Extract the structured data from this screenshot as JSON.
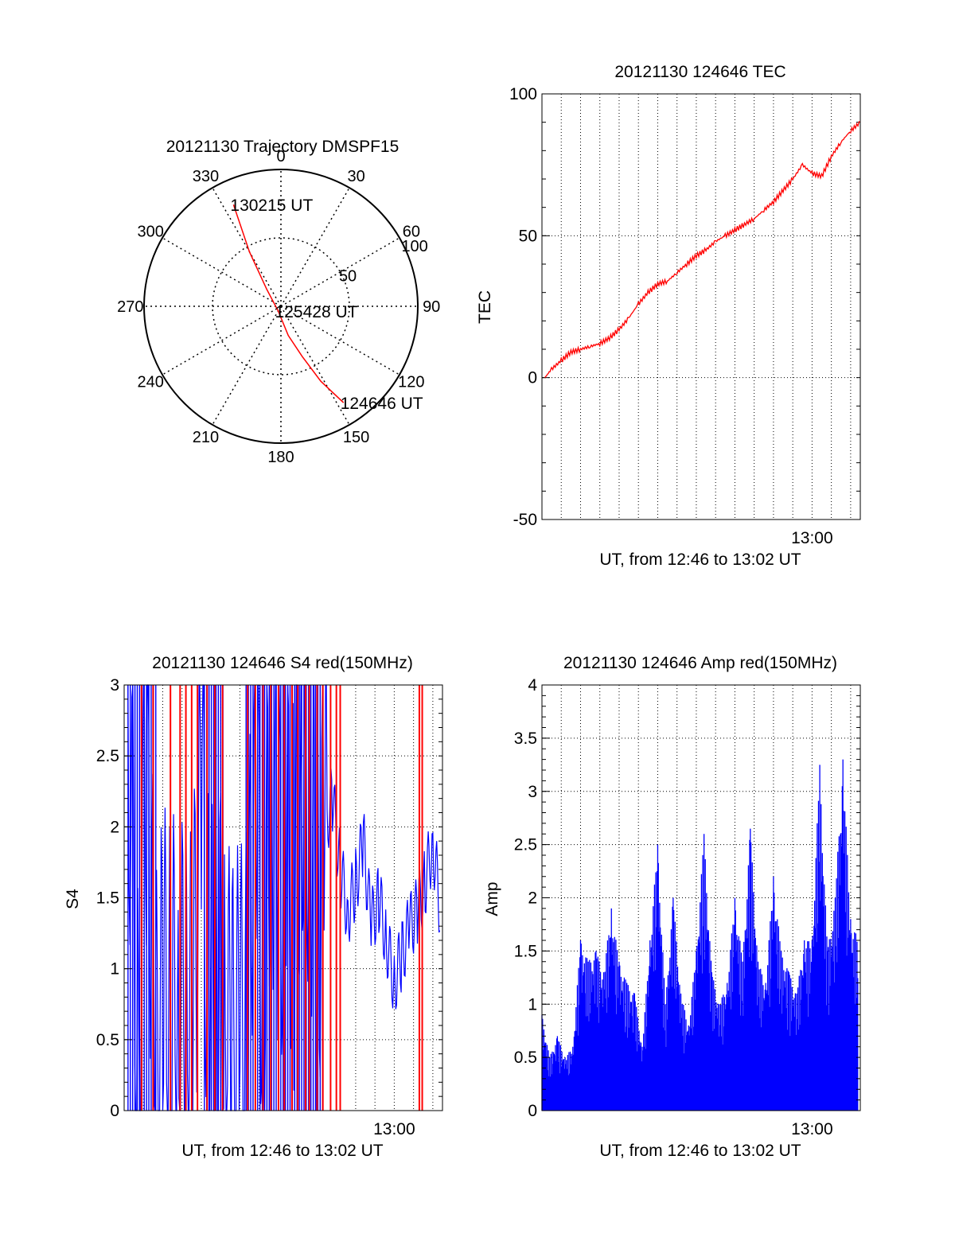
{
  "colors": {
    "red": "#ff0000",
    "blue": "#0000ff",
    "axis": "#000000",
    "background": "#ffffff"
  },
  "chart_data": [
    {
      "id": "trajectory",
      "type": "polar",
      "title": "20121130 Trajectory DMSPF15",
      "angle_labels": [
        "0",
        "30",
        "60",
        "90",
        "120",
        "150",
        "180",
        "210",
        "240",
        "270",
        "300",
        "330"
      ],
      "angles_deg": [
        0,
        30,
        60,
        90,
        120,
        150,
        180,
        210,
        240,
        270,
        300,
        330
      ],
      "radial_labels": [
        "50",
        "100"
      ],
      "radial_values": [
        50,
        100
      ],
      "rlim": [
        0,
        100
      ],
      "grid": true,
      "series": [
        {
          "color": "#ff0000",
          "points": [
            {
              "az": 147,
              "r": 84
            },
            {
              "az": 152,
              "r": 62
            },
            {
              "az": 157,
              "r": 40
            },
            {
              "az": 166,
              "r": 22
            },
            {
              "az": 210,
              "r": 4
            },
            {
              "az": 320,
              "r": 16
            },
            {
              "az": 330,
              "r": 46
            },
            {
              "az": 335,
              "r": 82
            }
          ]
        }
      ],
      "annotations": [
        {
          "text": "130215 UT",
          "az": 335,
          "r": 82
        },
        {
          "text": "125428 UT",
          "az": 210,
          "r": 4
        },
        {
          "text": "124646 UT",
          "az": 147,
          "r": 84
        }
      ]
    },
    {
      "id": "tec",
      "type": "line",
      "title": "20121130 124646 TEC",
      "xlabel": "UT, from 12:46 to 13:02 UT",
      "ylabel": "TEC",
      "xlim": [
        0,
        16.5
      ],
      "ylim": [
        -50,
        100
      ],
      "yticks": [
        -50,
        0,
        50,
        100
      ],
      "xtick_labels": [
        {
          "x": 14,
          "label": "13:00"
        }
      ],
      "vgrid_step": 1,
      "grid": true,
      "series": [
        {
          "color": "#ff0000",
          "x": [
            0.15,
            0.5,
            1.0,
            1.5,
            2.0,
            2.5,
            3.0,
            3.5,
            4.0,
            4.5,
            5.0,
            5.5,
            6.0,
            6.5,
            7.0,
            7.5,
            8.0,
            8.5,
            9.0,
            9.5,
            10.0,
            10.5,
            11.0,
            11.5,
            12.0,
            12.5,
            13.0,
            13.5,
            14.0,
            14.5,
            15.0,
            15.5,
            16.0,
            16.5
          ],
          "y": [
            0,
            3,
            6,
            9,
            10,
            11,
            12,
            14,
            17,
            21,
            26,
            30,
            33,
            34,
            37,
            40,
            43,
            45,
            48,
            50,
            52,
            54,
            56,
            59,
            62,
            66,
            70,
            75,
            72,
            71,
            78,
            83,
            87,
            90
          ]
        }
      ]
    },
    {
      "id": "s4",
      "type": "line",
      "title": "20121130 124646 S4 red(150MHz)",
      "xlabel": "UT, from 12:46 to 13:02 UT",
      "ylabel": "S4",
      "xlim": [
        0,
        16.5
      ],
      "ylim": [
        0,
        3
      ],
      "yticks": [
        0,
        0.5,
        1,
        1.5,
        2,
        2.5,
        3
      ],
      "ytick_labels": [
        "0",
        "0.5",
        "1",
        "1.5",
        "2",
        "2.5",
        "3"
      ],
      "xtick_labels": [
        {
          "x": 14,
          "label": "13:00"
        }
      ],
      "vgrid_step": 1,
      "grid": true,
      "series": [
        {
          "color": "#ff0000",
          "spikes_x": [
            0.9,
            1.5,
            2.4,
            2.9,
            3.2,
            3.5,
            3.8,
            4.3,
            4.7,
            5.1,
            6.4,
            6.8,
            7.2,
            7.6,
            8.0,
            8.3,
            8.7,
            9.0,
            9.4,
            9.6,
            10.0,
            10.3,
            10.7,
            11.0,
            11.2,
            15.3,
            15.45
          ]
        },
        {
          "color": "#0000ff",
          "x": [
            0.2,
            0.7,
            1.2,
            1.6,
            2.0,
            2.4,
            2.8,
            3.2,
            3.6,
            4.0,
            4.4,
            4.8,
            5.2,
            5.6,
            6.0,
            6.4,
            6.8,
            7.2,
            7.6,
            8.0,
            8.4,
            8.8,
            9.2,
            9.6,
            10.0,
            10.4,
            10.8,
            11.2,
            11.6,
            12.0,
            12.4,
            12.8,
            13.2,
            13.6,
            14.0,
            14.4,
            14.8,
            15.2,
            15.6,
            16.0,
            16.4
          ],
          "y": [
            3.0,
            0.3,
            2.8,
            0.2,
            0.75,
            0.7,
            0.72,
            0.68,
            0.74,
            2.4,
            0.7,
            1.2,
            0.6,
            0.4,
            0.5,
            0.6,
            2.8,
            0.8,
            2.5,
            1.6,
            1.9,
            1.5,
            2.6,
            2.2,
            1.3,
            2.0,
            2.2,
            1.7,
            1.4,
            1.6,
            1.9,
            1.3,
            1.5,
            1.2,
            0.9,
            1.1,
            1.3,
            1.4,
            1.6,
            1.9,
            1.4
          ]
        }
      ]
    },
    {
      "id": "amp",
      "type": "line",
      "title": "20121130 124646 Amp red(150MHz)",
      "xlabel": "UT, from 12:46 to 13:02 UT",
      "ylabel": "Amp",
      "xlim": [
        0,
        16.5
      ],
      "ylim": [
        0,
        4
      ],
      "yticks": [
        0,
        0.5,
        1,
        1.5,
        2,
        2.5,
        3,
        3.5,
        4
      ],
      "ytick_labels": [
        "0",
        "0.5",
        "1",
        "1.5",
        "2",
        "2.5",
        "3",
        "3.5",
        "4"
      ],
      "xtick_labels": [
        {
          "x": 14,
          "label": "13:00"
        }
      ],
      "vgrid_step": 1,
      "grid": true,
      "series": [
        {
          "color": "#ff0000",
          "x": [
            0.2,
            1.0,
            2.0,
            2.4,
            4.0,
            4.5,
            5.0,
            6.0,
            6.5,
            7.0,
            8.2,
            8.5,
            8.8,
            9.0,
            9.5
          ],
          "y": [
            0.4,
            0.35,
            0.45,
            0.3,
            0.4,
            0.5,
            0.35,
            0.3,
            0.45,
            0.25,
            0.55,
            1.6,
            0.8,
            0.4,
            0.3
          ]
        },
        {
          "color": "#0000ff",
          "x": [
            0.0,
            0.4,
            0.8,
            1.2,
            1.6,
            2.0,
            2.4,
            2.8,
            3.2,
            3.6,
            4.0,
            4.4,
            4.8,
            5.2,
            5.6,
            6.0,
            6.4,
            6.8,
            7.2,
            7.6,
            8.0,
            8.4,
            8.8,
            9.2,
            9.6,
            10.0,
            10.4,
            10.8,
            11.2,
            11.6,
            12.0,
            12.4,
            12.8,
            13.2,
            13.6,
            14.0,
            14.4,
            14.8,
            15.2,
            15.6,
            16.0,
            16.4
          ],
          "y": [
            0.9,
            0.5,
            0.7,
            0.5,
            0.6,
            1.6,
            1.4,
            1.5,
            1.3,
            1.9,
            1.4,
            1.2,
            1.1,
            0.6,
            1.6,
            2.5,
            1.0,
            2.0,
            1.1,
            0.8,
            1.5,
            2.6,
            1.3,
            1.0,
            1.2,
            2.0,
            1.4,
            2.65,
            1.4,
            1.2,
            2.2,
            1.5,
            1.3,
            1.1,
            1.6,
            1.6,
            3.25,
            1.5,
            2.0,
            3.3,
            1.8,
            1.6
          ]
        }
      ]
    }
  ]
}
